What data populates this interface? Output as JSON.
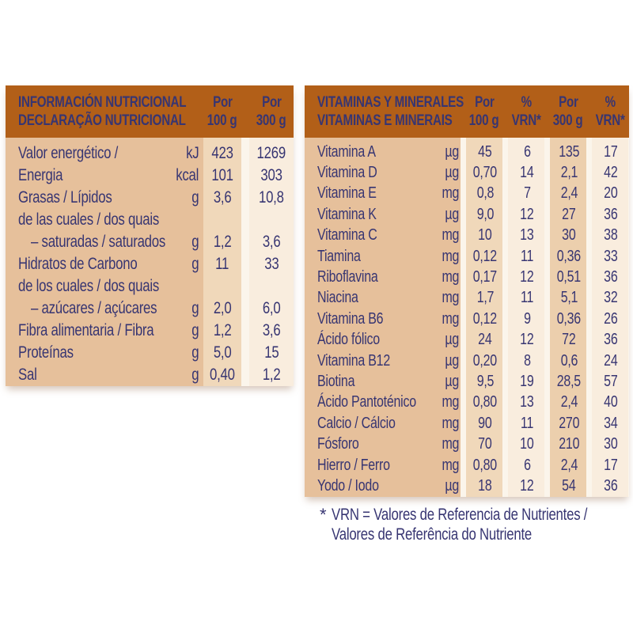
{
  "colors": {
    "header_background": "#b25f18",
    "text": "#373572",
    "label_zone": "#e6c09b",
    "stripe_beige": "#f0d8ba",
    "stripe_beige_dark": "#eccfad",
    "stripe_cream": "#f9edde",
    "page_background": "#ffffff"
  },
  "left_table": {
    "header": {
      "title_line1": "INFORMACIÓN NUTRICIONAL",
      "title_line2": "DECLARAÇÃO NUTRICIONAL",
      "columns": [
        {
          "line1": "Por",
          "line2": "100 g"
        },
        {
          "line1": "Por",
          "line2": "300 g"
        }
      ]
    },
    "rows": [
      {
        "label": "Valor energético /",
        "unit": "kJ",
        "per100": "423",
        "per300": "1269"
      },
      {
        "label": "Energia",
        "unit": "kcal",
        "per100": "101",
        "per300": "303"
      },
      {
        "label": "Grasas / Lípidos",
        "unit": "g",
        "per100": "3,6",
        "per300": "10,8"
      },
      {
        "label": "de las cuales / dos quais",
        "unit": "",
        "per100": "",
        "per300": ""
      },
      {
        "label": "– saturadas / saturados",
        "indent": true,
        "unit": "g",
        "per100": "1,2",
        "per300": "3,6"
      },
      {
        "label": "Hidratos de Carbono",
        "unit": "g",
        "per100": "11",
        "per300": "33"
      },
      {
        "label": "de los cuales / dos quais",
        "unit": "",
        "per100": "",
        "per300": ""
      },
      {
        "label": "– azúcares / açúcares",
        "indent": true,
        "unit": "g",
        "per100": "2,0",
        "per300": "6,0"
      },
      {
        "label": "Fibra alimentaria / Fibra",
        "unit": "g",
        "per100": "1,2",
        "per300": "3,6"
      },
      {
        "label": "Proteínas",
        "unit": "g",
        "per100": "5,0",
        "per300": "15"
      },
      {
        "label": "Sal",
        "unit": "g",
        "per100": "0,40",
        "per300": "1,2"
      }
    ]
  },
  "right_table": {
    "header": {
      "title_line1": "VITAMINAS Y MINERALES",
      "title_line2": "VITAMINAS E MINERAIS",
      "columns": [
        {
          "line1": "Por",
          "line2": "100 g"
        },
        {
          "line1": "%",
          "line2": "VRN*"
        },
        {
          "line1": "Por",
          "line2": "300 g"
        },
        {
          "line1": "%",
          "line2": "VRN*"
        }
      ]
    },
    "rows": [
      {
        "label": "Vitamina A",
        "unit": "µg",
        "per100": "45",
        "vrn100": "6",
        "per300": "135",
        "vrn300": "17"
      },
      {
        "label": "Vitamina D",
        "unit": "µg",
        "per100": "0,70",
        "vrn100": "14",
        "per300": "2,1",
        "vrn300": "42"
      },
      {
        "label": "Vitamina E",
        "unit": "mg",
        "per100": "0,8",
        "vrn100": "7",
        "per300": "2,4",
        "vrn300": "20"
      },
      {
        "label": "Vitamina K",
        "unit": "µg",
        "per100": "9,0",
        "vrn100": "12",
        "per300": "27",
        "vrn300": "36"
      },
      {
        "label": "Vitamina C",
        "unit": "mg",
        "per100": "10",
        "vrn100": "13",
        "per300": "30",
        "vrn300": "38"
      },
      {
        "label": "Tiamina",
        "unit": "mg",
        "per100": "0,12",
        "vrn100": "11",
        "per300": "0,36",
        "vrn300": "33"
      },
      {
        "label": "Riboflavina",
        "unit": "mg",
        "per100": "0,17",
        "vrn100": "12",
        "per300": "0,51",
        "vrn300": "36"
      },
      {
        "label": "Niacina",
        "unit": "mg",
        "per100": "1,7",
        "vrn100": "11",
        "per300": "5,1",
        "vrn300": "32"
      },
      {
        "label": "Vitamina B6",
        "unit": "mg",
        "per100": "0,12",
        "vrn100": "9",
        "per300": "0,36",
        "vrn300": "26"
      },
      {
        "label": "Ácido fólico",
        "unit": "µg",
        "per100": "24",
        "vrn100": "12",
        "per300": "72",
        "vrn300": "36"
      },
      {
        "label": "Vitamina B12",
        "unit": "µg",
        "per100": "0,20",
        "vrn100": "8",
        "per300": "0,6",
        "vrn300": "24"
      },
      {
        "label": "Biotina",
        "unit": "µg",
        "per100": "9,5",
        "vrn100": "19",
        "per300": "28,5",
        "vrn300": "57"
      },
      {
        "label": "Ácido Pantoténico",
        "unit": "mg",
        "per100": "0,80",
        "vrn100": "13",
        "per300": "2,4",
        "vrn300": "40"
      },
      {
        "label": "Calcio / Cálcio",
        "unit": "mg",
        "per100": "90",
        "vrn100": "11",
        "per300": "270",
        "vrn300": "34"
      },
      {
        "label": "Fósforo",
        "unit": "mg",
        "per100": "70",
        "vrn100": "10",
        "per300": "210",
        "vrn300": "30"
      },
      {
        "label": "Hierro / Ferro",
        "unit": "mg",
        "per100": "0,80",
        "vrn100": "6",
        "per300": "2,4",
        "vrn300": "17"
      },
      {
        "label": "Yodo / Iodo",
        "unit": "µg",
        "per100": "18",
        "vrn100": "12",
        "per300": "54",
        "vrn300": "36"
      }
    ]
  },
  "footnote": {
    "marker": "*",
    "line1": "VRN = Valores de Referencia de Nutrientes /",
    "line2": "Valores de Referência do Nutriente"
  }
}
